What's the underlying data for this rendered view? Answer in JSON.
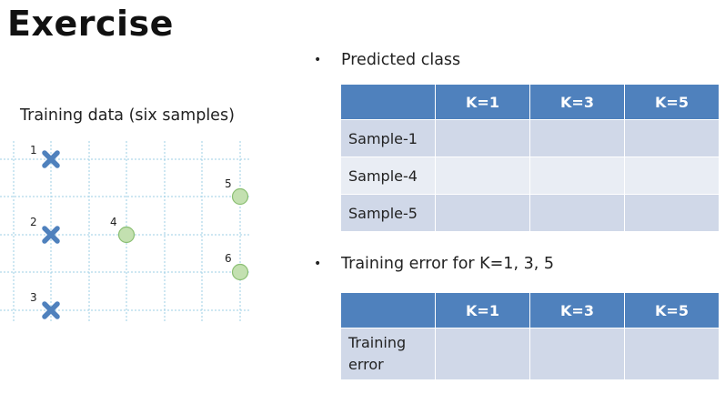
{
  "slide": {
    "title": "Exercise"
  },
  "training_chart": {
    "caption": "Training data (six samples)",
    "points": [
      {
        "label": "1",
        "kind": "cross",
        "color": "#4f81bd"
      },
      {
        "label": "2",
        "kind": "cross",
        "color": "#4f81bd"
      },
      {
        "label": "3",
        "kind": "cross",
        "color": "#4f81bd"
      },
      {
        "label": "4",
        "kind": "circle",
        "color": "#c3e0b0"
      },
      {
        "label": "5",
        "kind": "circle",
        "color": "#c3e0b0"
      },
      {
        "label": "6",
        "kind": "circle",
        "color": "#c3e0b0"
      }
    ]
  },
  "predicted_section": {
    "bullet": "Predicted class",
    "columns": [
      "K=1",
      "K=3",
      "K=5"
    ],
    "rows": [
      {
        "label": "Sample-1",
        "cells": [
          "",
          "",
          ""
        ]
      },
      {
        "label": "Sample-4",
        "cells": [
          "",
          "",
          ""
        ]
      },
      {
        "label": "Sample-5",
        "cells": [
          "",
          "",
          ""
        ]
      }
    ]
  },
  "error_section": {
    "bullet": "Training error for K=1, 3, 5",
    "columns": [
      "K=1",
      "K=3",
      "K=5"
    ],
    "row_label_line1": "Training",
    "row_label_line2": "error",
    "cells": [
      "",
      "",
      ""
    ]
  },
  "colors": {
    "header_blue": "#4f81bd",
    "row_dark": "#d0d8e8",
    "row_light": "#e9edf4",
    "grid_line": "#9ecfe6"
  }
}
